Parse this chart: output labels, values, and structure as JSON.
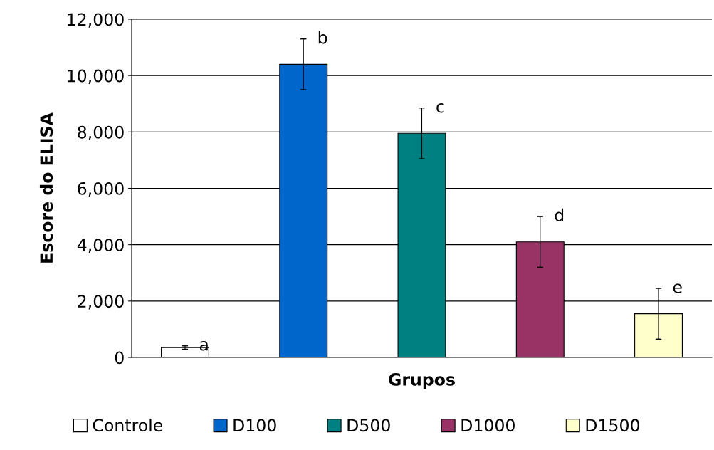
{
  "chart_data": {
    "type": "bar",
    "xlabel": "Grupos",
    "ylabel": "Escore do ELISA",
    "categories": [
      null
    ],
    "series": [
      {
        "name": "Controle",
        "color": "#ffffff",
        "values": [
          350
        ],
        "errors": [
          60
        ]
      },
      {
        "name": "D100",
        "color": "#0066cc",
        "values": [
          10400
        ],
        "errors": [
          900
        ]
      },
      {
        "name": "D500",
        "color": "#008080",
        "values": [
          7950
        ],
        "errors": [
          900
        ]
      },
      {
        "name": "D1000",
        "color": "#993366",
        "values": [
          4100
        ],
        "errors": [
          900
        ]
      },
      {
        "name": "D1500",
        "color": "#ffffcc",
        "values": [
          1550
        ],
        "errors": [
          900
        ]
      }
    ],
    "annotations": [
      "a",
      "b",
      "c",
      "d",
      "e"
    ],
    "ylim": [
      0,
      12000
    ],
    "yticks": [
      {
        "value": 0,
        "label": "0"
      },
      {
        "value": 2000,
        "label": "2,000"
      },
      {
        "value": 4000,
        "label": "4,000"
      },
      {
        "value": 6000,
        "label": "6,000"
      },
      {
        "value": 8000,
        "label": "8,000"
      },
      {
        "value": 10000,
        "label": "10,000"
      },
      {
        "value": 12000,
        "label": "12,000"
      }
    ],
    "grid": "y",
    "legend": "bottom"
  }
}
